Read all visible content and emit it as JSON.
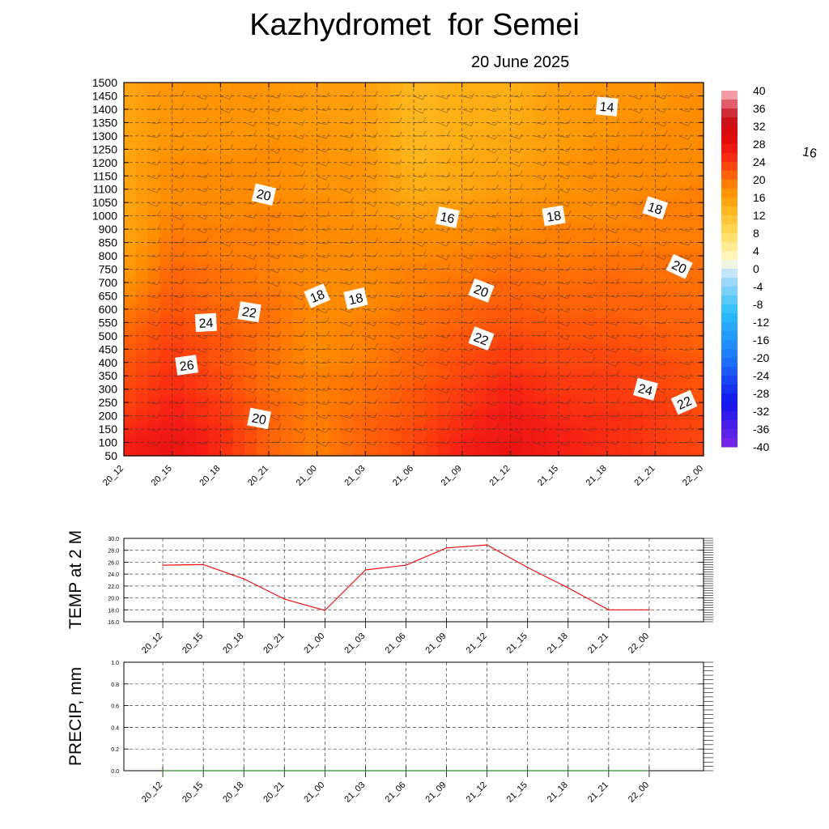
{
  "header": {
    "title": "Kazhydromet  for Semei",
    "date": "20 June 2025"
  },
  "chart_data": [
    {
      "type": "heatmap",
      "name": "temperature-cross-section",
      "x_categories": [
        "20_12",
        "20_15",
        "20_18",
        "20_21",
        "21_00",
        "21_03",
        "21_06",
        "21_09",
        "21_12",
        "21_15",
        "21_18",
        "21_21",
        "22_00"
      ],
      "y_ticks": [
        50,
        100,
        150,
        200,
        250,
        300,
        350,
        400,
        450,
        500,
        550,
        600,
        650,
        700,
        750,
        800,
        850,
        900,
        1000,
        1050,
        1100,
        1150,
        1200,
        1250,
        1300,
        1350,
        1400,
        1450,
        1500
      ],
      "ylim": [
        50,
        1500
      ],
      "grid": true,
      "colorbar": {
        "labels": [
          "40",
          "36",
          "32",
          "28",
          "24",
          "20",
          "16",
          "12",
          "8",
          "4",
          "0",
          "-4",
          "-8",
          "-12",
          "-16",
          "-20",
          "-24",
          "-28",
          "-32",
          "-36",
          "-40"
        ],
        "range": [
          -40,
          40
        ],
        "placement": "right"
      },
      "values": [
        [
          26,
          26,
          25,
          24,
          23,
          23,
          22,
          22,
          21,
          21,
          20,
          19,
          18,
          17,
          16,
          16,
          15,
          15,
          15,
          15,
          15,
          15,
          15,
          15,
          15,
          15,
          15,
          15,
          15
        ],
        [
          28,
          28,
          27,
          26,
          26,
          25,
          25,
          24,
          24,
          23,
          23,
          22,
          22,
          21,
          21,
          20,
          20,
          19,
          19,
          18,
          18,
          18,
          18,
          17,
          17,
          17,
          17,
          17,
          17
        ],
        [
          25,
          25,
          25,
          24,
          24,
          23,
          23,
          22,
          22,
          22,
          21,
          21,
          20,
          20,
          20,
          19,
          19,
          19,
          18,
          18,
          18,
          18,
          18,
          17,
          17,
          17,
          17,
          17,
          17
        ],
        [
          21,
          21,
          21,
          21,
          21,
          20,
          20,
          20,
          20,
          20,
          20,
          20,
          20,
          19,
          19,
          19,
          19,
          19,
          19,
          18,
          18,
          18,
          18,
          18,
          17,
          17,
          17,
          17,
          17
        ],
        [
          19,
          19,
          19,
          19,
          19,
          19,
          19,
          18,
          18,
          18,
          18,
          18,
          18,
          18,
          18,
          18,
          18,
          18,
          18,
          18,
          17,
          17,
          17,
          17,
          17,
          16,
          16,
          16,
          16
        ],
        [
          21,
          21,
          21,
          21,
          20,
          20,
          20,
          19,
          19,
          19,
          19,
          18,
          18,
          18,
          18,
          18,
          18,
          18,
          17,
          17,
          17,
          17,
          17,
          16,
          16,
          16,
          16,
          16,
          16
        ],
        [
          23,
          23,
          23,
          22,
          22,
          22,
          21,
          21,
          21,
          20,
          20,
          20,
          19,
          19,
          19,
          18,
          18,
          17,
          16,
          15,
          14,
          14,
          13,
          13,
          13,
          13,
          13,
          13,
          13
        ],
        [
          26,
          26,
          25,
          25,
          24,
          24,
          23,
          23,
          22,
          22,
          21,
          21,
          20,
          20,
          19,
          19,
          18,
          18,
          17,
          16,
          15,
          15,
          15,
          14,
          14,
          14,
          14,
          14,
          14
        ],
        [
          28,
          28,
          27,
          27,
          26,
          26,
          25,
          24,
          24,
          23,
          22,
          22,
          21,
          21,
          20,
          20,
          19,
          18,
          18,
          17,
          16,
          16,
          15,
          15,
          15,
          14,
          14,
          14,
          14
        ],
        [
          26,
          26,
          26,
          25,
          25,
          24,
          24,
          23,
          23,
          22,
          22,
          21,
          21,
          20,
          20,
          19,
          19,
          19,
          18,
          18,
          17,
          17,
          17,
          16,
          16,
          16,
          16,
          16,
          16
        ],
        [
          25,
          25,
          25,
          25,
          24,
          24,
          24,
          23,
          23,
          22,
          22,
          21,
          21,
          21,
          20,
          20,
          19,
          19,
          18,
          18,
          18,
          18,
          18,
          18,
          17,
          17,
          17,
          17,
          17
        ],
        [
          24,
          24,
          24,
          24,
          24,
          23,
          23,
          23,
          22,
          22,
          21,
          21,
          21,
          20,
          20,
          20,
          19,
          19,
          19,
          19,
          18,
          18,
          18,
          18,
          18,
          18,
          17,
          17,
          17
        ],
        [
          23,
          23,
          23,
          23,
          22,
          22,
          22,
          22,
          21,
          21,
          21,
          21,
          20,
          20,
          20,
          20,
          19,
          19,
          19,
          19,
          19,
          18,
          18,
          18,
          18,
          18,
          18,
          18,
          18
        ]
      ],
      "contour_labels": [
        {
          "text": "14",
          "x": 10.0,
          "y": 1410
        },
        {
          "text": "16",
          "x": 14.2,
          "y": 1240
        },
        {
          "text": "20",
          "x": 2.9,
          "y": 1080
        },
        {
          "text": "16",
          "x": 6.7,
          "y": 990
        },
        {
          "text": "18",
          "x": 8.9,
          "y": 1000
        },
        {
          "text": "18",
          "x": 11.0,
          "y": 1030
        },
        {
          "text": "20",
          "x": 11.5,
          "y": 760
        },
        {
          "text": "18",
          "x": 4.0,
          "y": 650
        },
        {
          "text": "18",
          "x": 4.8,
          "y": 640
        },
        {
          "text": "20",
          "x": 7.4,
          "y": 670
        },
        {
          "text": "22",
          "x": 2.6,
          "y": 590
        },
        {
          "text": "24",
          "x": 1.7,
          "y": 550
        },
        {
          "text": "22",
          "x": 7.4,
          "y": 490
        },
        {
          "text": "26",
          "x": 1.3,
          "y": 390
        },
        {
          "text": "24",
          "x": 10.8,
          "y": 300
        },
        {
          "text": "22",
          "x": 11.6,
          "y": 250
        },
        {
          "text": "20",
          "x": 2.8,
          "y": 190
        }
      ]
    },
    {
      "type": "line",
      "name": "temperature-2m",
      "ylabel": "TEMP at 2 M",
      "categories": [
        "20_12",
        "20_15",
        "20_18",
        "20_21",
        "21_00",
        "21_03",
        "21_06",
        "21_09",
        "21_12",
        "21_15",
        "21_18",
        "21_21",
        "22_00"
      ],
      "values": [
        25.5,
        25.6,
        23.2,
        19.8,
        17.9,
        24.7,
        25.5,
        28.4,
        28.9,
        25.1,
        21.7,
        18.0,
        18.0
      ],
      "ylim": [
        16.0,
        30.0
      ],
      "y_ticks": [
        "30.0",
        "28.0",
        "26.0",
        "24.0",
        "22.0",
        "20.0",
        "18.0",
        "16.0"
      ],
      "grid": true,
      "color": "#ee1111"
    },
    {
      "type": "line",
      "name": "precipitation",
      "ylabel": "PRECIP, mm",
      "categories": [
        "20_12",
        "20_15",
        "20_18",
        "20_21",
        "21_00",
        "21_03",
        "21_06",
        "21_09",
        "21_12",
        "21_15",
        "21_18",
        "21_21",
        "22_00"
      ],
      "values": [
        0,
        0,
        0,
        0,
        0,
        0,
        0,
        0,
        0,
        0,
        0,
        0,
        0
      ],
      "ylim": [
        0.0,
        1.0
      ],
      "y_ticks": [
        "1.0",
        "0.8",
        "0.6",
        "0.4",
        "0.2",
        "0.0"
      ],
      "grid": true,
      "color": "#2e8b2e"
    }
  ]
}
